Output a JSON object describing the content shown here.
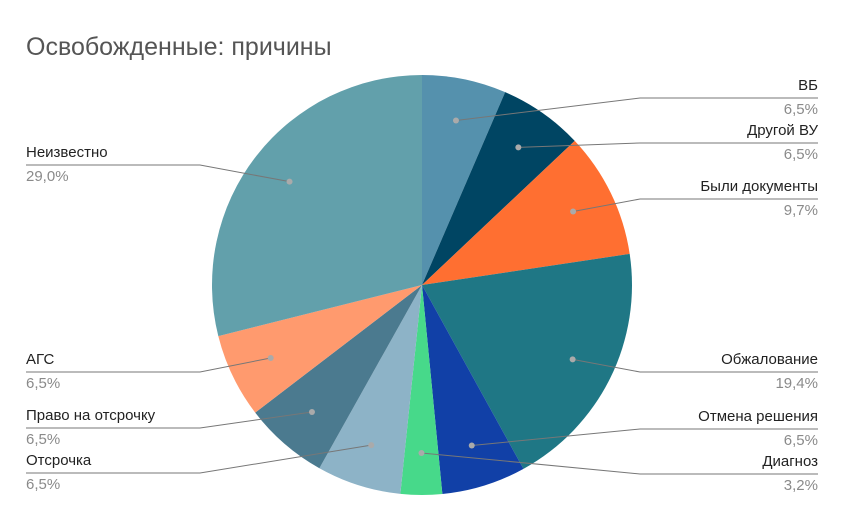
{
  "chart_data": {
    "type": "pie",
    "title": "Освобожденные: причины",
    "categories": [
      "ВБ",
      "Другой ВУ",
      "Были документы",
      "Обжалование",
      "Отмена решения",
      "Диагноз",
      "Отсрочка",
      "Право на отсрочку",
      "АГС",
      "Неизвестно"
    ],
    "values": [
      6.5,
      6.5,
      9.7,
      19.4,
      6.5,
      3.2,
      6.5,
      6.5,
      6.5,
      29.0
    ],
    "value_labels": [
      "6,5%",
      "6,5%",
      "9,7%",
      "19,4%",
      "6,5%",
      "3,2%",
      "6,5%",
      "6,5%",
      "6,5%",
      "29,0%"
    ],
    "colors": [
      "#5591ad",
      "#004563",
      "#ff6f31",
      "#1f7785",
      "#1140a7",
      "#47d98a",
      "#8db3c7",
      "#4b7a8f",
      "#ff9a6e",
      "#62a0ab"
    ]
  }
}
